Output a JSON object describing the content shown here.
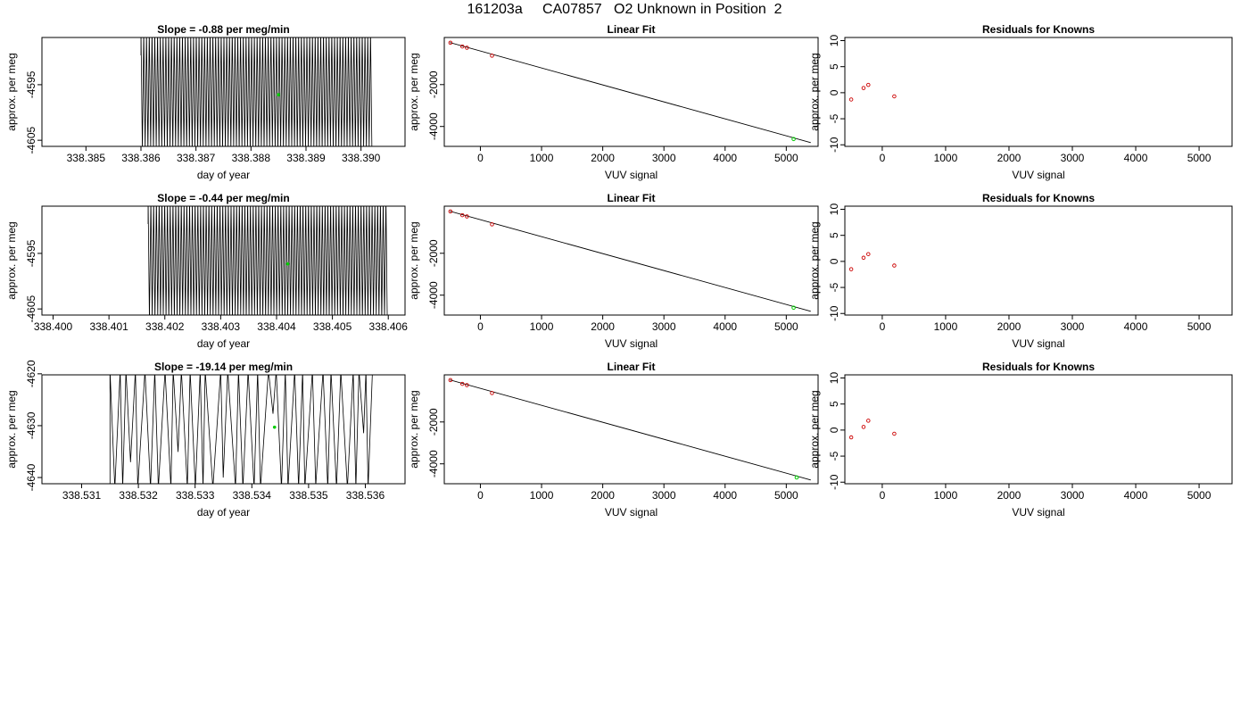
{
  "page_title": "161203a     CA07857   O2 Unknown in Position  2",
  "colors": {
    "line": "#000000",
    "known_point": "#cc0000",
    "unknown_point": "#00cc00",
    "frame": "#000000"
  },
  "chart_data": [
    {
      "id": "timeseries-1",
      "type": "line",
      "title": "Slope =  -0.88  per meg/min",
      "xlabel": "day of year",
      "ylabel": "approx. per meg",
      "xlim": [
        338.3842,
        338.3908
      ],
      "ylim": [
        -4606.1,
        -4586.5
      ],
      "xticks": [
        338.385,
        338.386,
        338.387,
        338.388,
        338.389,
        338.39
      ],
      "xtick_labels": [
        "338.385",
        "338.386",
        "338.387",
        "338.388",
        "338.389",
        "338.390"
      ],
      "yticks": [
        -4595,
        -4605
      ],
      "ytick_labels": [
        "-4595",
        "-4605"
      ],
      "series": [
        {
          "x_range": [
            338.386,
            338.3902
          ],
          "oscillation_y_range": [
            -4605.5,
            -4586.5
          ]
        }
      ],
      "highlight_point": {
        "x": 338.3885,
        "y": -4596.8
      }
    },
    {
      "id": "linfit-1",
      "type": "scatter",
      "title": "Linear Fit",
      "xlabel": "VUV signal",
      "ylabel": "approx. per meg",
      "xlim": [
        -590,
        5520
      ],
      "ylim": [
        -4950,
        250
      ],
      "xticks": [
        0,
        1000,
        2000,
        3000,
        4000,
        5000
      ],
      "xtick_labels": [
        "0",
        "1000",
        "2000",
        "3000",
        "4000",
        "5000"
      ],
      "yticks": [
        -2000,
        -4000
      ],
      "ytick_labels": [
        "-2000",
        "-4000"
      ],
      "known_points": [
        {
          "x": -490,
          "y": 0
        },
        {
          "x": -295,
          "y": -180
        },
        {
          "x": -220,
          "y": -240
        },
        {
          "x": 190,
          "y": -620
        }
      ],
      "unknown_point": {
        "x": 5120,
        "y": -4600
      },
      "fit_line": [
        {
          "x": -500,
          "y": 10
        },
        {
          "x": 5400,
          "y": -4770
        }
      ]
    },
    {
      "id": "resid-1",
      "type": "scatter",
      "title": "Residuals for Knowns",
      "xlabel": "VUV signal",
      "ylabel": "approx. per meg",
      "xlim": [
        -590,
        5520
      ],
      "ylim": [
        -10.3,
        10.6
      ],
      "xticks": [
        0,
        1000,
        2000,
        3000,
        4000,
        5000
      ],
      "xtick_labels": [
        "0",
        "1000",
        "2000",
        "3000",
        "4000",
        "5000"
      ],
      "yticks": [
        10,
        5,
        0,
        -5,
        -10
      ],
      "ytick_labels": [
        "10",
        "5",
        "0",
        "-5",
        "-10"
      ],
      "points": [
        {
          "x": -490,
          "y": -1.3
        },
        {
          "x": -295,
          "y": 0.9
        },
        {
          "x": -220,
          "y": 1.5
        },
        {
          "x": 190,
          "y": -0.7
        }
      ]
    },
    {
      "id": "timeseries-2",
      "type": "line",
      "title": "Slope =  -0.44  per meg/min",
      "xlabel": "day of year",
      "ylabel": "approx. per meg",
      "xlim": [
        338.3998,
        338.4063
      ],
      "ylim": [
        -4606.1,
        -4586.5
      ],
      "xticks": [
        338.4,
        338.401,
        338.402,
        338.403,
        338.404,
        338.405,
        338.406
      ],
      "xtick_labels": [
        "338.400",
        "338.401",
        "338.402",
        "338.403",
        "338.404",
        "338.405",
        "338.406"
      ],
      "yticks": [
        -4595,
        -4605
      ],
      "ytick_labels": [
        "-4595",
        "-4605"
      ],
      "series": [
        {
          "x_range": [
            338.4017,
            338.406
          ],
          "oscillation_y_range": [
            -4605.5,
            -4586.5
          ]
        }
      ],
      "highlight_point": {
        "x": 338.4042,
        "y": -4596.9
      }
    },
    {
      "id": "linfit-2",
      "type": "scatter",
      "title": "Linear Fit",
      "xlabel": "VUV signal",
      "ylabel": "approx. per meg",
      "xlim": [
        -590,
        5520
      ],
      "ylim": [
        -4950,
        250
      ],
      "xticks": [
        0,
        1000,
        2000,
        3000,
        4000,
        5000
      ],
      "xtick_labels": [
        "0",
        "1000",
        "2000",
        "3000",
        "4000",
        "5000"
      ],
      "yticks": [
        -2000,
        -4000
      ],
      "ytick_labels": [
        "-2000",
        "-4000"
      ],
      "known_points": [
        {
          "x": -490,
          "y": 0
        },
        {
          "x": -295,
          "y": -180
        },
        {
          "x": -220,
          "y": -240
        },
        {
          "x": 190,
          "y": -620
        }
      ],
      "unknown_point": {
        "x": 5120,
        "y": -4600
      },
      "fit_line": [
        {
          "x": -500,
          "y": 10
        },
        {
          "x": 5400,
          "y": -4770
        }
      ]
    },
    {
      "id": "resid-2",
      "type": "scatter",
      "title": "Residuals for Knowns",
      "xlabel": "VUV signal",
      "ylabel": "approx. per meg",
      "xlim": [
        -590,
        5520
      ],
      "ylim": [
        -10.3,
        10.6
      ],
      "xticks": [
        0,
        1000,
        2000,
        3000,
        4000,
        5000
      ],
      "xtick_labels": [
        "0",
        "1000",
        "2000",
        "3000",
        "4000",
        "5000"
      ],
      "yticks": [
        10,
        5,
        0,
        -5,
        -10
      ],
      "ytick_labels": [
        "10",
        "5",
        "0",
        "-5",
        "-10"
      ],
      "points": [
        {
          "x": -490,
          "y": -1.5
        },
        {
          "x": -295,
          "y": 0.7
        },
        {
          "x": -220,
          "y": 1.4
        },
        {
          "x": 190,
          "y": -0.8
        }
      ]
    },
    {
      "id": "timeseries-3",
      "type": "line",
      "title": "Slope =  -19.14  per meg/min",
      "xlabel": "day of year",
      "ylabel": "approx. per meg",
      "xlim": [
        338.5303,
        338.5367
      ],
      "ylim": [
        -4641.2,
        -4620.2
      ],
      "xticks": [
        338.531,
        338.532,
        338.533,
        338.534,
        338.535,
        338.536
      ],
      "xtick_labels": [
        "338.531",
        "338.532",
        "338.533",
        "338.534",
        "338.535",
        "338.536"
      ],
      "yticks": [
        -4620,
        -4630,
        -4640
      ],
      "ytick_labels": [
        "-4620",
        "-4630",
        "-4640"
      ],
      "series": [
        {
          "x_range": [
            338.5315,
            338.5362
          ],
          "oscillation_y_range": [
            -4641.2,
            -4620.2
          ]
        }
      ],
      "highlight_point": {
        "x": 338.5344,
        "y": -4630.3
      }
    },
    {
      "id": "linfit-3",
      "type": "scatter",
      "title": "Linear Fit",
      "xlabel": "VUV signal",
      "ylabel": "approx. per meg",
      "xlim": [
        -590,
        5520
      ],
      "ylim": [
        -4950,
        250
      ],
      "xticks": [
        0,
        1000,
        2000,
        3000,
        4000,
        5000
      ],
      "xtick_labels": [
        "0",
        "1000",
        "2000",
        "3000",
        "4000",
        "5000"
      ],
      "yticks": [
        -2000,
        -4000
      ],
      "ytick_labels": [
        "-2000",
        "-4000"
      ],
      "known_points": [
        {
          "x": -490,
          "y": 0
        },
        {
          "x": -295,
          "y": -180
        },
        {
          "x": -220,
          "y": -240
        },
        {
          "x": 190,
          "y": -620
        }
      ],
      "unknown_point": {
        "x": 5170,
        "y": -4650
      },
      "fit_line": [
        {
          "x": -500,
          "y": 10
        },
        {
          "x": 5400,
          "y": -4770
        }
      ]
    },
    {
      "id": "resid-3",
      "type": "scatter",
      "title": "Residuals for Knowns",
      "xlabel": "VUV signal",
      "ylabel": "approx. per meg",
      "xlim": [
        -590,
        5520
      ],
      "ylim": [
        -10.3,
        10.6
      ],
      "xticks": [
        0,
        1000,
        2000,
        3000,
        4000,
        5000
      ],
      "xtick_labels": [
        "0",
        "1000",
        "2000",
        "3000",
        "4000",
        "5000"
      ],
      "yticks": [
        10,
        5,
        0,
        -5,
        -10
      ],
      "ytick_labels": [
        "10",
        "5",
        "0",
        "-5",
        "-10"
      ],
      "points": [
        {
          "x": -490,
          "y": -1.4
        },
        {
          "x": -295,
          "y": 0.6
        },
        {
          "x": -220,
          "y": 1.8
        },
        {
          "x": 190,
          "y": -0.7
        }
      ]
    }
  ]
}
